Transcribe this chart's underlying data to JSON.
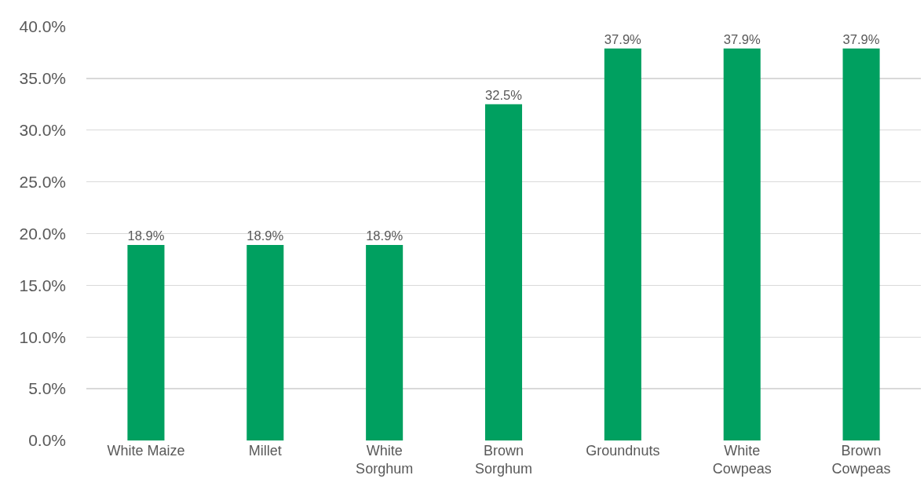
{
  "chart_data": {
    "type": "bar",
    "categories": [
      "White Maize",
      "Millet",
      "White Sorghum",
      "Brown Sorghum",
      "Groundnuts",
      "White Cowpeas",
      "Brown Cowpeas"
    ],
    "values": [
      18.9,
      18.9,
      18.9,
      32.5,
      37.9,
      37.9,
      37.9
    ],
    "value_labels": [
      "18.9%",
      "18.9%",
      "18.9%",
      "32.5%",
      "37.9%",
      "37.9%",
      "37.9%"
    ],
    "color": "#00a060",
    "ylim": [
      0,
      40
    ],
    "yticks": [
      {
        "value": 0,
        "label": "0.0%"
      },
      {
        "value": 5,
        "label": "5.0%"
      },
      {
        "value": 10,
        "label": "10.0%"
      },
      {
        "value": 15,
        "label": "15.0%"
      },
      {
        "value": 20,
        "label": "20.0%"
      },
      {
        "value": 25,
        "label": "25.0%"
      },
      {
        "value": 30,
        "label": "30.0%"
      },
      {
        "value": 35,
        "label": "35.0%"
      },
      {
        "value": 40,
        "label": "40.0%"
      }
    ],
    "grid": "y",
    "legend": false
  }
}
